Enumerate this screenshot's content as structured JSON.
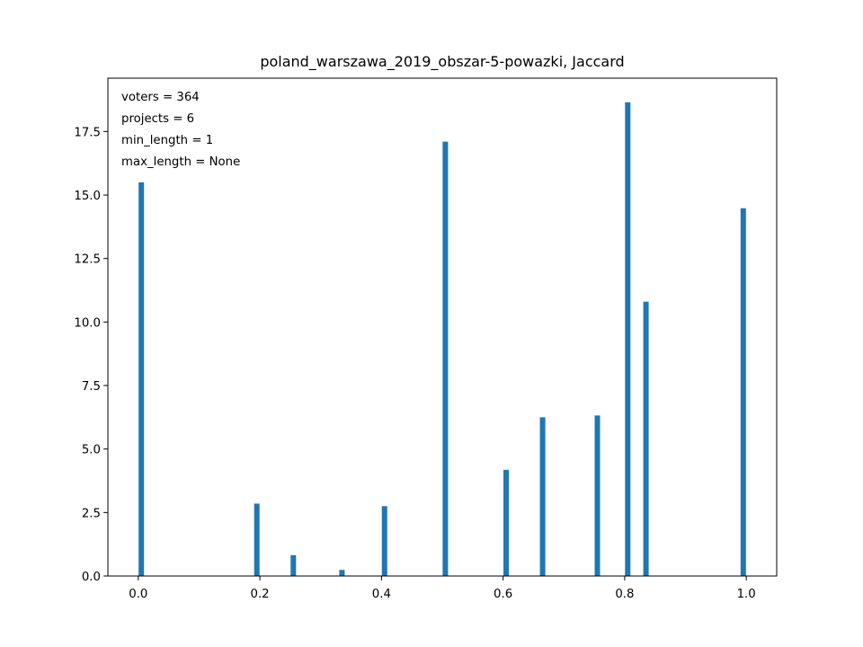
{
  "chart_data": {
    "type": "bar",
    "title": "poland_warszawa_2019_obszar-5-powazki, Jaccard",
    "xlabel": "",
    "ylabel": "",
    "xlim": [
      -0.05,
      1.05
    ],
    "ylim": [
      0,
      19.6
    ],
    "grid": false,
    "bar_color": "#1f77b4",
    "x_ticks": [
      0.0,
      0.2,
      0.4,
      0.6,
      0.8,
      1.0
    ],
    "x_tick_labels": [
      "0.0",
      "0.2",
      "0.4",
      "0.6",
      "0.8",
      "1.0"
    ],
    "y_ticks": [
      0.0,
      2.5,
      5.0,
      7.5,
      10.0,
      12.5,
      15.0,
      17.5
    ],
    "y_tick_labels": [
      "0.0",
      "2.5",
      "5.0",
      "7.5",
      "10.0",
      "12.5",
      "15.0",
      "17.5"
    ],
    "bars": [
      {
        "x": 0.005,
        "value": 15.5
      },
      {
        "x": 0.195,
        "value": 2.85
      },
      {
        "x": 0.255,
        "value": 0.82
      },
      {
        "x": 0.335,
        "value": 0.24
      },
      {
        "x": 0.405,
        "value": 2.75
      },
      {
        "x": 0.505,
        "value": 17.1
      },
      {
        "x": 0.605,
        "value": 4.18
      },
      {
        "x": 0.665,
        "value": 6.25
      },
      {
        "x": 0.755,
        "value": 6.32
      },
      {
        "x": 0.805,
        "value": 18.65
      },
      {
        "x": 0.835,
        "value": 10.8
      },
      {
        "x": 0.995,
        "value": 14.48
      }
    ],
    "annotations": [
      "voters = 364",
      "projects = 6",
      "min_length = 1",
      "max_length = None"
    ]
  }
}
